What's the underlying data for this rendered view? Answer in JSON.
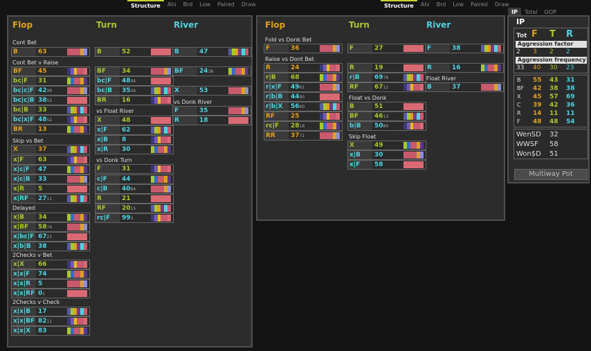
{
  "tabs_left": [
    "Structure",
    "Ahi",
    "Brd",
    "Low",
    "Paired",
    "Draw"
  ],
  "tabs_mid": [
    "Structure",
    "Ahi",
    "Brd",
    "Low",
    "Paired",
    "Draw"
  ],
  "tabs_right": [
    "IP",
    "Total",
    "OOP"
  ],
  "columns": {
    "flop": "Flop",
    "turn": "Turn",
    "river": "River"
  },
  "colors": {
    "flop": "#e0a020",
    "turn": "#a8c832",
    "river": "#4fd3e0"
  },
  "left": {
    "sections": {
      "cont_bet": "Cont Bet",
      "cont_bet_v_raise": "Cont Bet v Raise",
      "vs_float_river": "vs Float River",
      "vs_donk_river": "vs Donk River",
      "skip_vs_bet": "Skip vs Bet",
      "vs_donk_turn": "vs Donk Turn",
      "delayed": "Delayed",
      "two_checks_v_bet": "2Checks v Bet",
      "two_checks_v_check": "2Checks v Check"
    },
    "rows": [
      {
        "id": "cb-f-b",
        "label": "B",
        "value": "63",
        "small": ""
      },
      {
        "id": "cb-t-b",
        "label": "B",
        "value": "52",
        "small": ""
      },
      {
        "id": "cb-r-b",
        "label": "B",
        "value": "47",
        "small": ""
      },
      {
        "id": "cbr-bf",
        "label": "BF",
        "value": "45",
        "small": ""
      },
      {
        "id": "cbr-bcf",
        "label": "bc|F",
        "value": "31",
        "small": ""
      },
      {
        "id": "cbr-bccf",
        "label": "bc|c|F",
        "value": "42",
        "small": "99"
      },
      {
        "id": "cbr-bccb",
        "label": "bc|c|B",
        "value": "38",
        "small": "52"
      },
      {
        "id": "cbr-bcb",
        "label": "bc|B",
        "value": "33",
        "small": ""
      },
      {
        "id": "cbr-bcxf",
        "label": "bc|x|F",
        "value": "48",
        "small": "52"
      },
      {
        "id": "cbr-br",
        "label": "BR",
        "value": "13",
        "small": ""
      },
      {
        "id": "cbr-t-bf",
        "label": "BF",
        "value": "34",
        "small": ""
      },
      {
        "id": "cbr-t-bcf",
        "label": "bc|F",
        "value": "48",
        "small": "94"
      },
      {
        "id": "cbr-t-bcb",
        "label": "bc|B",
        "value": "35",
        "small": "26"
      },
      {
        "id": "cbr-t-br",
        "label": "BR",
        "value": "16",
        "small": ""
      },
      {
        "id": "cbr-r-bf",
        "label": "BF",
        "value": "24",
        "small": "38"
      },
      {
        "id": "cbr-r-x",
        "label": "X",
        "value": "53",
        "small": ""
      },
      {
        "id": "vfr-x",
        "label": "X",
        "value": "48",
        "small": ""
      },
      {
        "id": "vfr-xf",
        "label": "x|F",
        "value": "62",
        "small": ""
      },
      {
        "id": "vfr-xb",
        "label": "x|B",
        "value": "8",
        "small": ""
      },
      {
        "id": "vfr-xr",
        "label": "x|R",
        "value": "30",
        "small": ""
      },
      {
        "id": "vdr-f",
        "label": "F",
        "value": "35",
        "small": ""
      },
      {
        "id": "vdr-r",
        "label": "R",
        "value": "18",
        "small": ""
      },
      {
        "id": "svb-x",
        "label": "X",
        "value": "37",
        "small": ""
      },
      {
        "id": "svb-xf",
        "label": "x|F",
        "value": "63",
        "small": ""
      },
      {
        "id": "svb-xcf",
        "label": "x|c|F",
        "value": "47",
        "small": ""
      },
      {
        "id": "svb-xcb",
        "label": "x|c|B",
        "value": "33",
        "small": ""
      },
      {
        "id": "svb-xr",
        "label": "x|R",
        "value": "5",
        "small": ""
      },
      {
        "id": "svb-xrf",
        "label": "x|RF",
        "value": "27",
        "small": "11"
      },
      {
        "id": "vdt-f",
        "label": "F",
        "value": "31",
        "small": ""
      },
      {
        "id": "vdt-cf",
        "label": "c|F",
        "value": "44",
        "small": ""
      },
      {
        "id": "vdt-cb",
        "label": "c|B",
        "value": "40",
        "small": "84"
      },
      {
        "id": "vdt-r",
        "label": "R",
        "value": "21",
        "small": ""
      },
      {
        "id": "vdt-rf",
        "label": "RF",
        "value": "20",
        "small": "15"
      },
      {
        "id": "vdt-rcf",
        "label": "rc|F",
        "value": "99",
        "small": "3"
      },
      {
        "id": "dl-xb",
        "label": "x|B",
        "value": "34",
        "small": ""
      },
      {
        "id": "dl-xbf",
        "label": "x|BF",
        "value": "58",
        "small": "74"
      },
      {
        "id": "dl-xbcf",
        "label": "x|bc|F",
        "value": "67",
        "small": "21"
      },
      {
        "id": "dl-xbb",
        "label": "x|b|B",
        "value": "38",
        "small": ""
      },
      {
        "id": "tcb-xx",
        "label": "x|X",
        "value": "66",
        "small": ""
      },
      {
        "id": "tcb-xxf",
        "label": "x|x|F",
        "value": "74",
        "small": ""
      },
      {
        "id": "tcb-xxr",
        "label": "x|x|R",
        "value": "5",
        "small": ""
      },
      {
        "id": "tcb-xxrf",
        "label": "x|x|RF",
        "value": "0",
        "small": "1"
      },
      {
        "id": "tcc-xxb",
        "label": "x|x|B",
        "value": "17",
        "small": ""
      },
      {
        "id": "tcc-xxbf",
        "label": "x|x|BF",
        "value": "82",
        "small": "11"
      },
      {
        "id": "tcc-xxx",
        "label": "x|x|X",
        "value": "83",
        "small": ""
      }
    ]
  },
  "mid": {
    "sections": {
      "fold_vs_donk": "Fold vs Donk Bet",
      "raise_vs_dont": "Raise vs Dont Bet",
      "float_river": "Float River",
      "float_vs_donk": "Float vs Donk",
      "skip_float": "Skip Float"
    },
    "rows": [
      {
        "id": "fvd-f",
        "label": "F",
        "value": "36",
        "small": ""
      },
      {
        "id": "fvd-t-f",
        "label": "F",
        "value": "27",
        "small": ""
      },
      {
        "id": "fvd-r-f",
        "label": "F",
        "value": "38",
        "small": ""
      },
      {
        "id": "rvd-r",
        "label": "R",
        "value": "24",
        "small": ""
      },
      {
        "id": "rvd-rb",
        "label": "r|B",
        "value": "68",
        "small": ""
      },
      {
        "id": "rvd-rxf",
        "label": "r|x|F",
        "value": "49",
        "small": "61"
      },
      {
        "id": "rvd-rbb",
        "label": "r|b|B",
        "value": "44",
        "small": "90"
      },
      {
        "id": "rvd-rbx",
        "label": "r|b|X",
        "value": "56",
        "small": "90"
      },
      {
        "id": "rvd-rf",
        "label": "RF",
        "value": "25",
        "small": ""
      },
      {
        "id": "rvd-rcf",
        "label": "rc|F",
        "value": "28",
        "small": "18"
      },
      {
        "id": "rvd-rr",
        "label": "RR",
        "value": "37",
        "small": "71"
      },
      {
        "id": "rvd-t-r",
        "label": "R",
        "value": "19",
        "small": ""
      },
      {
        "id": "rvd-t-rb",
        "label": "r|B",
        "value": "69",
        "small": "78"
      },
      {
        "id": "rvd-t-rf",
        "label": "RF",
        "value": "67",
        "small": "12"
      },
      {
        "id": "rvd-r-r",
        "label": "R",
        "value": "16",
        "small": ""
      },
      {
        "id": "fr-b",
        "label": "B",
        "value": "37",
        "small": ""
      },
      {
        "id": "fvdk-b",
        "label": "B",
        "value": "51",
        "small": ""
      },
      {
        "id": "fvdk-bf",
        "label": "BF",
        "value": "46",
        "small": "13"
      },
      {
        "id": "fvdk-bb",
        "label": "b|B",
        "value": "50",
        "small": "80"
      },
      {
        "id": "sf-x",
        "label": "X",
        "value": "49",
        "small": ""
      },
      {
        "id": "sf-xb",
        "label": "x|B",
        "value": "30",
        "small": ""
      },
      {
        "id": "sf-xf",
        "label": "x|F",
        "value": "58",
        "small": ""
      }
    ]
  },
  "right": {
    "title": "IP",
    "tot": "Tot",
    "cols": [
      "F",
      "T",
      "R"
    ],
    "aggr_factor_label": "Aggression factor",
    "aggr_factor": [
      "2",
      "3",
      "2",
      "2"
    ],
    "aggr_freq_label": "Aggression frequency",
    "aggr_freq": [
      "33",
      "40",
      "30",
      "23"
    ],
    "stats_labels": [
      "B",
      "BF",
      "X",
      "C",
      "R",
      "F"
    ],
    "stats": [
      [
        "55",
        "43",
        "31"
      ],
      [
        "42",
        "38",
        "38"
      ],
      [
        "45",
        "57",
        "69"
      ],
      [
        "39",
        "42",
        "36"
      ],
      [
        "14",
        "11",
        "11"
      ],
      [
        "48",
        "48",
        "54"
      ]
    ],
    "ws": [
      {
        "label": "WenSD",
        "value": "32"
      },
      {
        "label": "WWSF",
        "value": "58"
      },
      {
        "label": "Won$D",
        "value": "51"
      }
    ],
    "multiway": "Multiway Pot"
  }
}
